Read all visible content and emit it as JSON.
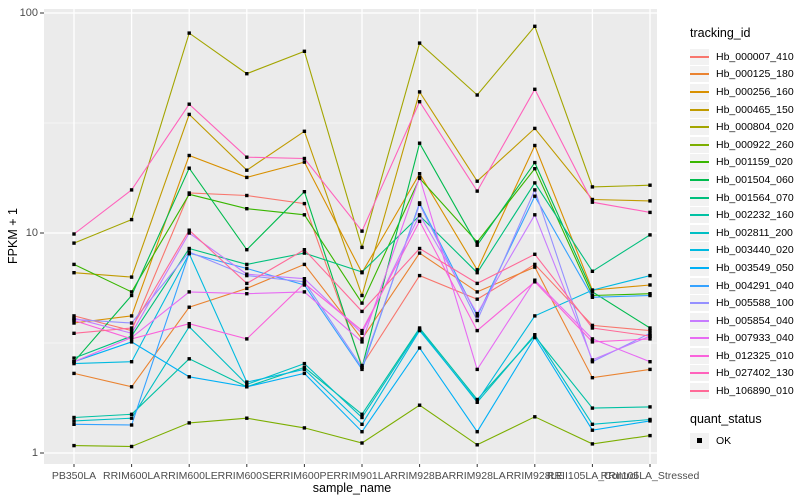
{
  "chart_data": {
    "type": "line",
    "title": "",
    "xlabel": "sample_name",
    "ylabel": "FPKM + 1",
    "y_scale": "log10",
    "ylim": [
      0.9,
      105
    ],
    "grid": true,
    "legend_position": "right",
    "y_ticks": [
      1,
      10,
      100
    ],
    "y_minor_ticks": [
      3.162,
      31.62
    ],
    "categories": [
      "PB350LA",
      "RRIM600LA",
      "RRIM600LE",
      "RRIM600SE",
      "RRIM600PE",
      "RRIM901LA",
      "RRIM928BA",
      "RRIM928LA",
      "RRIM928LE",
      "RRII105LA_Control",
      "RRII105LA_Stressed"
    ],
    "series": [
      {
        "name": "Hb_000007_410",
        "color": "#F8766D",
        "values": [
          4.2,
          3.6,
          15.2,
          14.8,
          13.6,
          2.5,
          6.4,
          5.0,
          7.2,
          3.8,
          3.6
        ]
      },
      {
        "name": "Hb_000125_180",
        "color": "#EA8331",
        "values": [
          2.3,
          2.0,
          4.6,
          5.6,
          7.2,
          3.3,
          8.1,
          5.4,
          7.0,
          2.2,
          2.4
        ]
      },
      {
        "name": "Hb_000256_160",
        "color": "#D89000",
        "values": [
          3.9,
          4.2,
          22.5,
          17.9,
          21.0,
          6.6,
          18.6,
          6.8,
          25.0,
          5.5,
          5.8
        ]
      },
      {
        "name": "Hb_000465_150",
        "color": "#C09B00",
        "values": [
          6.6,
          6.3,
          34.6,
          19.3,
          29.0,
          5.2,
          43.8,
          17.2,
          29.9,
          14.2,
          14.0
        ]
      },
      {
        "name": "Hb_000804_020",
        "color": "#A3A500",
        "values": [
          9.0,
          11.5,
          81.0,
          53.0,
          67.0,
          8.6,
          73.0,
          42.4,
          87.0,
          16.2,
          16.5
        ]
      },
      {
        "name": "Hb_000922_260",
        "color": "#7CAE00",
        "values": [
          1.08,
          1.07,
          1.37,
          1.44,
          1.3,
          1.11,
          1.65,
          1.09,
          1.46,
          1.1,
          1.2
        ]
      },
      {
        "name": "Hb_001159_020",
        "color": "#39B600",
        "values": [
          7.2,
          5.4,
          15.0,
          12.9,
          12.1,
          4.8,
          17.7,
          9.1,
          19.6,
          5.2,
          5.3
        ]
      },
      {
        "name": "Hb_001504_060",
        "color": "#00BB4E",
        "values": [
          2.6,
          5.2,
          19.7,
          8.4,
          15.4,
          2.45,
          25.6,
          8.8,
          20.9,
          5.4,
          3.7
        ]
      },
      {
        "name": "Hb_001564_070",
        "color": "#00BF7D",
        "values": [
          2.7,
          3.4,
          8.5,
          7.2,
          8.1,
          6.65,
          12.0,
          6.6,
          16.9,
          6.7,
          9.8
        ]
      },
      {
        "name": "Hb_002232_160",
        "color": "#00C1A3",
        "values": [
          1.45,
          1.5,
          2.68,
          2.0,
          2.45,
          1.5,
          3.7,
          1.75,
          3.4,
          1.6,
          1.62
        ]
      },
      {
        "name": "Hb_002811_200",
        "color": "#00BFC4",
        "values": [
          1.4,
          1.44,
          3.75,
          2.05,
          2.55,
          1.45,
          3.65,
          1.7,
          3.45,
          1.35,
          1.42
        ]
      },
      {
        "name": "Hb_003440_020",
        "color": "#00BAE0",
        "values": [
          2.55,
          2.6,
          8.05,
          2.1,
          2.4,
          1.35,
          3.6,
          1.72,
          4.2,
          5.5,
          6.4
        ]
      },
      {
        "name": "Hb_003549_050",
        "color": "#00B0F6",
        "values": [
          2.6,
          3.2,
          2.22,
          2.0,
          2.3,
          1.25,
          3.0,
          1.25,
          3.35,
          1.27,
          1.4
        ]
      },
      {
        "name": "Hb_004291_040",
        "color": "#35A2FF",
        "values": [
          1.35,
          1.34,
          8.1,
          6.9,
          5.8,
          2.4,
          13.7,
          4.2,
          14.7,
          5.1,
          5.2
        ]
      },
      {
        "name": "Hb_005588_100",
        "color": "#9590FF",
        "values": [
          4.05,
          3.9,
          8.2,
          6.4,
          6.0,
          2.45,
          13.5,
          4.0,
          15.7,
          2.6,
          3.5
        ]
      },
      {
        "name": "Hb_005854_040",
        "color": "#C77CFF",
        "values": [
          4.1,
          3.5,
          10.0,
          6.5,
          6.2,
          3.5,
          12.1,
          4.3,
          12.1,
          2.65,
          3.4
        ]
      },
      {
        "name": "Hb_007933_040",
        "color": "#E76BF3",
        "values": [
          2.6,
          3.35,
          5.4,
          5.3,
          5.4,
          3.2,
          17.9,
          2.4,
          6.1,
          3.3,
          2.6
        ]
      },
      {
        "name": "Hb_012325_010",
        "color": "#FA62DB",
        "values": [
          4.0,
          3.3,
          3.87,
          3.3,
          5.9,
          3.6,
          11.3,
          3.6,
          6.0,
          3.2,
          3.3
        ]
      },
      {
        "name": "Hb_027402_130",
        "color": "#FF62BC",
        "values": [
          9.9,
          15.7,
          38.5,
          22.1,
          21.8,
          10.2,
          39.5,
          15.5,
          45.0,
          13.8,
          12.4
        ]
      },
      {
        "name": "Hb_106890_010",
        "color": "#FF6A98",
        "values": [
          3.5,
          3.7,
          10.3,
          5.9,
          8.4,
          4.4,
          8.5,
          5.9,
          8.0,
          3.7,
          3.4
        ]
      }
    ]
  },
  "axes": {
    "y_title": "FPKM + 1",
    "x_title": "sample_name"
  },
  "legend": {
    "title": "tracking_id",
    "quant_title": "quant_status",
    "quant_items": [
      {
        "label": "OK"
      }
    ]
  },
  "style": {
    "panel_bg": "#EBEBEB",
    "grid_color": "#FFFFFF",
    "point_color": "#000000",
    "tick_label_color": "#4D4D4D",
    "legend_key_bg": "#F2F2F2"
  }
}
